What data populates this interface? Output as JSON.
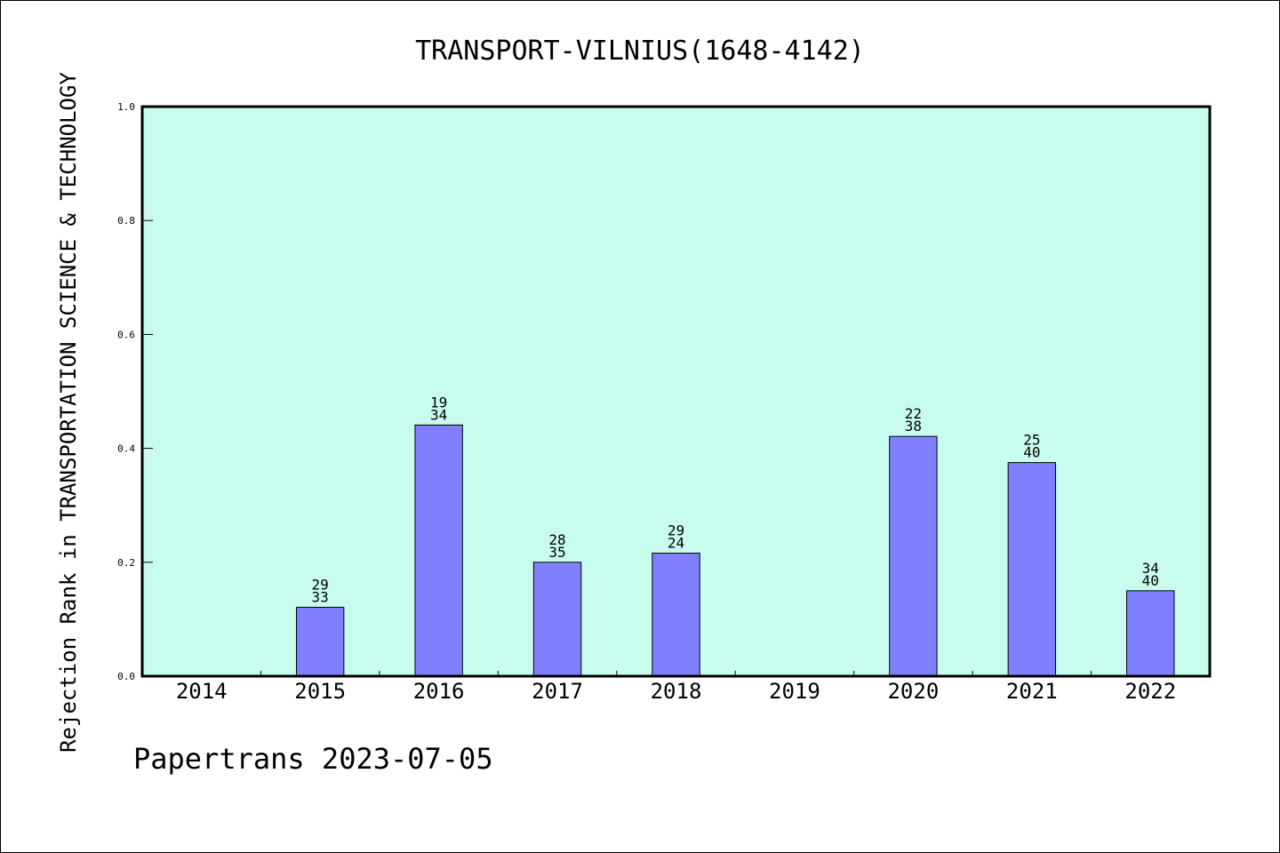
{
  "chart_data": {
    "type": "bar",
    "title": "TRANSPORT-VILNIUS(1648-4142)",
    "xlabel": "",
    "ylabel": "Rejection Rank in TRANSPORTATION SCIENCE & TECHNOLOGY",
    "categories": [
      "2014",
      "2015",
      "2016",
      "2017",
      "2018",
      "2019",
      "2020",
      "2021",
      "2022"
    ],
    "values": [
      null,
      0.121,
      0.441,
      0.2,
      0.216,
      null,
      0.421,
      0.375,
      0.15
    ],
    "bar_labels": [
      null,
      [
        "29",
        "33"
      ],
      [
        "19",
        "34"
      ],
      [
        "28",
        "35"
      ],
      [
        "29",
        "24"
      ],
      null,
      [
        "22",
        "38"
      ],
      [
        "25",
        "40"
      ],
      [
        "34",
        "40"
      ]
    ],
    "ylim": [
      0,
      1.0
    ],
    "yticks": [
      "0.0",
      "0.2",
      "0.4",
      "0.6",
      "0.8",
      "1.0"
    ],
    "grid": false,
    "legend": "none",
    "colors": {
      "plot_background": "#c8fcee",
      "bar_fill": "#8080ff",
      "bar_stroke": "#000000"
    }
  },
  "footer": {
    "text": "Papertrans 2023-07-05"
  }
}
